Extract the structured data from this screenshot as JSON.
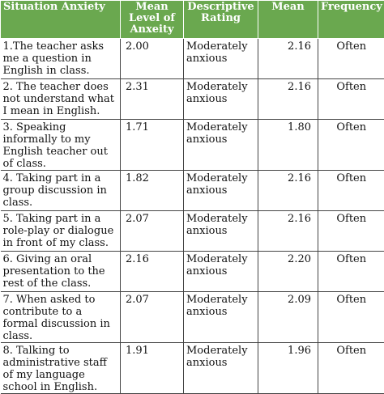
{
  "headers": {
    "situation": "Situation Anxiety",
    "mean_level": "Mean Level of Anxeity",
    "descriptive": "Descriptive Rating",
    "mean": "Mean",
    "frequency": "Frequency"
  },
  "rows": [
    {
      "situation": "1.The teacher asks me a question in English in class.",
      "level": "2.00",
      "rating": "Moderately anxious",
      "mean": "2.16",
      "frequency": "Often"
    },
    {
      "situation": "2.  The teacher does not understand what I mean in English.",
      "level": "2.31",
      "rating": "Moderately anxious",
      "mean": "2.16",
      "frequency": "Often"
    },
    {
      "situation": "3. Speaking informally to my English teacher out of class.",
      "level": "1.71",
      "rating": "Moderately anxious",
      "mean": "1.80",
      "frequency": "Often"
    },
    {
      "situation": "4. Taking part in a group discussion in class.",
      "level": "1.82",
      "rating": "Moderately anxious",
      "mean": "2.16",
      "frequency": "Often"
    },
    {
      "situation": "5. Taking part in a role-play or dialogue in front of my class.",
      "level": "2.07",
      "rating": "Moderately anxious",
      "mean": "2.16",
      "frequency": "Often"
    },
    {
      "situation": "6. Giving an oral presentation to the rest of the class.",
      "level": "2.16",
      "rating": "Moderately anxious",
      "mean": "2.20",
      "frequency": "Often"
    },
    {
      "situation": "7.  When asked to contribute to a formal discussion in class.",
      "level": "2.07",
      "rating": "Moderately anxious",
      "mean": "2.09",
      "frequency": "Often"
    },
    {
      "situation": "8. Talking to administrative staff of my language school in English.",
      "level": "1.91",
      "rating": "Moderately anxious",
      "mean": "1.96",
      "frequency": "Often"
    }
  ],
  "colors": {
    "header_bg": "#6aa84f",
    "header_text": "#ffffff"
  }
}
